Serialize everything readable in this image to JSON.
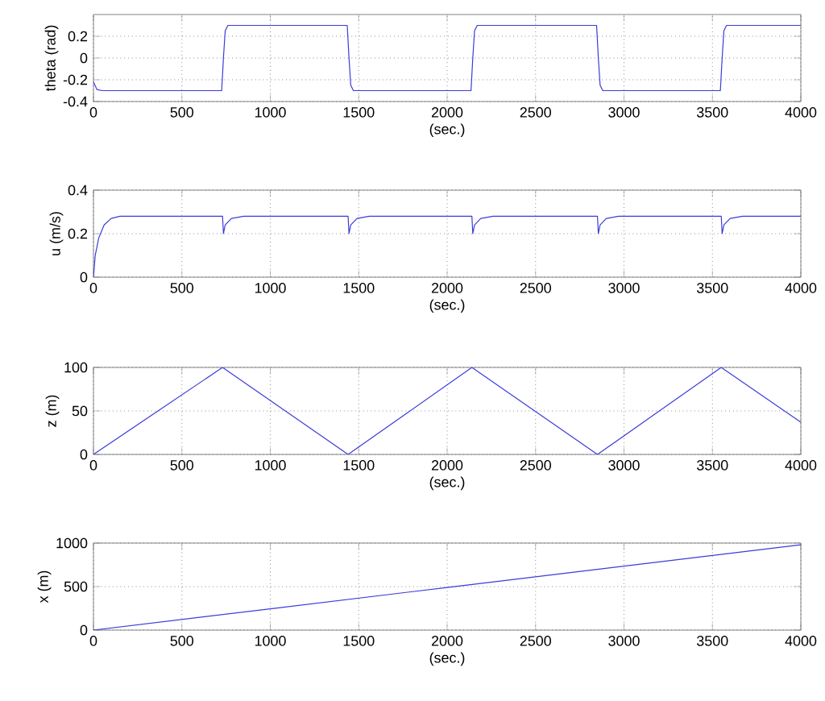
{
  "chart_data": [
    {
      "type": "line",
      "xlabel": "(sec.)",
      "ylabel": "theta (rad)",
      "color": "#3b3bd9",
      "grid": true,
      "xlim": [
        0,
        4000
      ],
      "ylim": [
        -0.4,
        0.4
      ],
      "xticks": [
        0,
        500,
        1000,
        1500,
        2000,
        2500,
        3000,
        3500,
        4000
      ],
      "yticks": [
        -0.4,
        -0.2,
        0,
        0.2
      ],
      "x": [
        0,
        20,
        50,
        700,
        725,
        735,
        745,
        760,
        1420,
        1435,
        1445,
        1455,
        1470,
        2120,
        2135,
        2145,
        2155,
        2170,
        2830,
        2845,
        2855,
        2865,
        2880,
        3530,
        3545,
        3555,
        3565,
        3580,
        4000
      ],
      "values": [
        -0.22,
        -0.29,
        -0.3,
        -0.3,
        -0.3,
        0,
        0.25,
        0.3,
        0.3,
        0.3,
        0,
        -0.25,
        -0.3,
        -0.3,
        -0.3,
        0,
        0.25,
        0.3,
        0.3,
        0.3,
        0,
        -0.25,
        -0.3,
        -0.3,
        -0.3,
        0,
        0.25,
        0.3,
        0.3
      ]
    },
    {
      "type": "line",
      "xlabel": "(sec.)",
      "ylabel": "u (m/s)",
      "color": "#3b3bd9",
      "grid": true,
      "xlim": [
        0,
        4000
      ],
      "ylim": [
        0,
        0.4
      ],
      "xticks": [
        0,
        500,
        1000,
        1500,
        2000,
        2500,
        3000,
        3500,
        4000
      ],
      "yticks": [
        0,
        0.2,
        0.4
      ],
      "x": [
        0,
        10,
        30,
        60,
        100,
        150,
        300,
        730,
        735,
        745,
        780,
        850,
        1440,
        1445,
        1455,
        1490,
        1560,
        2140,
        2145,
        2155,
        2190,
        2260,
        2850,
        2855,
        2865,
        2900,
        2970,
        3550,
        3555,
        3565,
        3600,
        3670,
        4000
      ],
      "values": [
        0,
        0.1,
        0.18,
        0.24,
        0.27,
        0.28,
        0.28,
        0.28,
        0.2,
        0.24,
        0.27,
        0.28,
        0.28,
        0.2,
        0.24,
        0.27,
        0.28,
        0.28,
        0.2,
        0.24,
        0.27,
        0.28,
        0.28,
        0.2,
        0.24,
        0.27,
        0.28,
        0.28,
        0.2,
        0.24,
        0.27,
        0.28,
        0.28
      ]
    },
    {
      "type": "line",
      "xlabel": "(sec.)",
      "ylabel": "z (m)",
      "color": "#3b3bd9",
      "grid": true,
      "xlim": [
        0,
        4000
      ],
      "ylim": [
        0,
        100
      ],
      "xticks": [
        0,
        500,
        1000,
        1500,
        2000,
        2500,
        3000,
        3500,
        4000
      ],
      "yticks": [
        0,
        50,
        100
      ],
      "x": [
        0,
        730,
        1440,
        2140,
        2850,
        3550,
        4000
      ],
      "values": [
        0,
        100,
        0,
        100,
        0,
        100,
        37
      ]
    },
    {
      "type": "line",
      "xlabel": "(sec.)",
      "ylabel": "x (m)",
      "color": "#3b3bd9",
      "grid": true,
      "xlim": [
        0,
        4000
      ],
      "ylim": [
        0,
        1000
      ],
      "xticks": [
        0,
        500,
        1000,
        1500,
        2000,
        2500,
        3000,
        3500,
        4000
      ],
      "yticks": [
        0,
        500,
        1000
      ],
      "x": [
        0,
        1000,
        2000,
        3000,
        4000
      ],
      "values": [
        0,
        245,
        490,
        735,
        980
      ]
    }
  ]
}
